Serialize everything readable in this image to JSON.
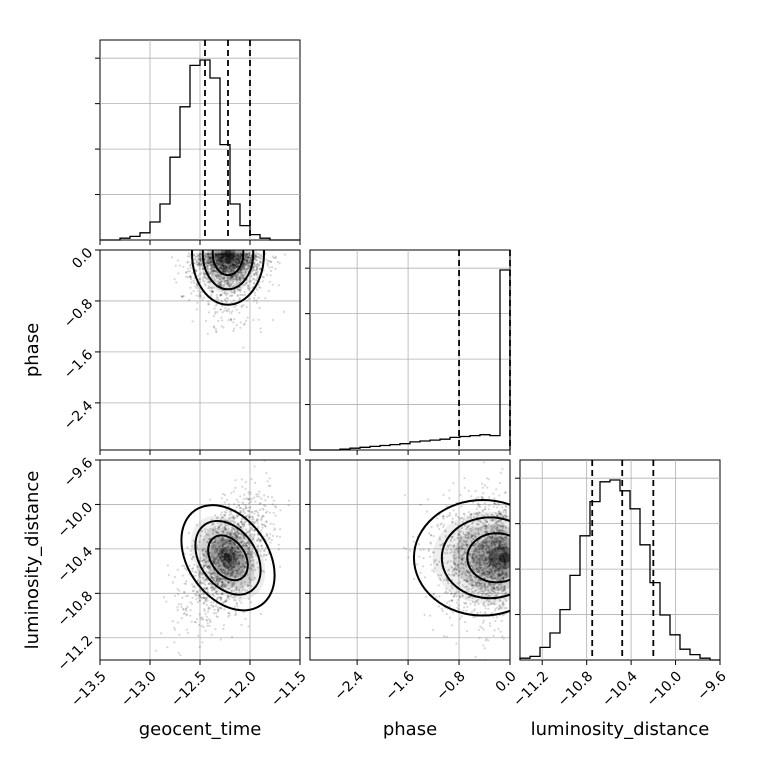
{
  "chart_data": {
    "type": "corner",
    "parameters": [
      {
        "name": "geocent_time",
        "label": "geocent_time",
        "range": [
          -13.5,
          -11.5
        ],
        "ticks": [
          "-13.5",
          "-13.0",
          "-12.5",
          "-12.0",
          "-11.5"
        ],
        "tick_values": [
          -13.5,
          -13.0,
          -12.5,
          -12.0,
          -11.5
        ],
        "quantiles": [
          -12.45,
          -12.22,
          -12.0
        ],
        "histogram": {
          "edges": [
            -13.5,
            -13.4,
            -13.3,
            -13.2,
            -13.1,
            -13.0,
            -12.9,
            -12.8,
            -12.7,
            -12.6,
            -12.5,
            -12.4,
            -12.3,
            -12.2,
            -12.1,
            -12.0,
            -11.9,
            -11.8,
            -11.7,
            -11.6,
            -11.5
          ],
          "density": [
            0.0,
            0.0,
            0.01,
            0.02,
            0.04,
            0.1,
            0.2,
            0.46,
            0.74,
            0.97,
            1.0,
            0.9,
            0.53,
            0.2,
            0.08,
            0.03,
            0.01,
            0.0,
            0.0,
            0.0
          ]
        }
      },
      {
        "name": "phase",
        "label": "phase",
        "range": [
          -3.14,
          0.0
        ],
        "ticks": [
          "-2.4",
          "-1.6",
          "-0.8",
          "0.0"
        ],
        "tick_values": [
          -2.4,
          -1.6,
          -0.8,
          0.0
        ],
        "quantiles": [
          -0.8,
          0.0
        ],
        "histogram": {
          "edges": [
            -3.14,
            -2.983,
            -2.826,
            -2.669,
            -2.512,
            -2.355,
            -2.198,
            -2.041,
            -1.884,
            -1.727,
            -1.57,
            -1.413,
            -1.256,
            -1.099,
            -0.942,
            -0.785,
            -0.628,
            -0.471,
            -0.314,
            -0.157,
            0.0
          ],
          "density": [
            0.0,
            0.0,
            0.0,
            0.005,
            0.01,
            0.015,
            0.02,
            0.025,
            0.03,
            0.035,
            0.045,
            0.05,
            0.055,
            0.06,
            0.07,
            0.075,
            0.08,
            0.085,
            0.08,
            1.0
          ]
        }
      },
      {
        "name": "luminosity_distance",
        "label": "luminosity_distance",
        "range": [
          -11.4,
          -9.6
        ],
        "ticks": [
          "-11.2",
          "-10.8",
          "-10.4",
          "-10.0",
          "-9.6"
        ],
        "tick_values": [
          -11.2,
          -10.8,
          -10.4,
          -10.0,
          -9.6
        ],
        "quantiles": [
          -10.75,
          -10.48,
          -10.2
        ],
        "histogram": {
          "edges": [
            -11.4,
            -11.31,
            -11.22,
            -11.13,
            -11.04,
            -10.95,
            -10.86,
            -10.77,
            -10.68,
            -10.59,
            -10.5,
            -10.41,
            -10.32,
            -10.23,
            -10.14,
            -10.05,
            -9.96,
            -9.87,
            -9.78,
            -9.69,
            -9.6
          ],
          "density": [
            0.01,
            0.02,
            0.07,
            0.15,
            0.28,
            0.47,
            0.69,
            0.88,
            0.99,
            1.0,
            0.94,
            0.84,
            0.64,
            0.43,
            0.25,
            0.14,
            0.06,
            0.03,
            0.01,
            0.0
          ]
        }
      }
    ],
    "pairs": [
      {
        "x": "geocent_time",
        "y": "phase",
        "center": [
          -12.22,
          -0.05
        ],
        "spread": [
          0.18,
          0.45
        ],
        "correlation": 0.15
      },
      {
        "x": "geocent_time",
        "y": "luminosity_distance",
        "center": [
          -12.22,
          -10.48
        ],
        "spread": [
          0.2,
          0.26
        ],
        "correlation": 0.55
      },
      {
        "x": "phase",
        "y": "luminosity_distance",
        "center": [
          -0.05,
          -10.48
        ],
        "spread": [
          0.45,
          0.26
        ],
        "correlation": 0.0
      }
    ],
    "grid": true,
    "colors": {
      "axes": "#000000",
      "grid": "#b0b0b0",
      "points": "#000000",
      "quantile_line": "#000000"
    }
  }
}
